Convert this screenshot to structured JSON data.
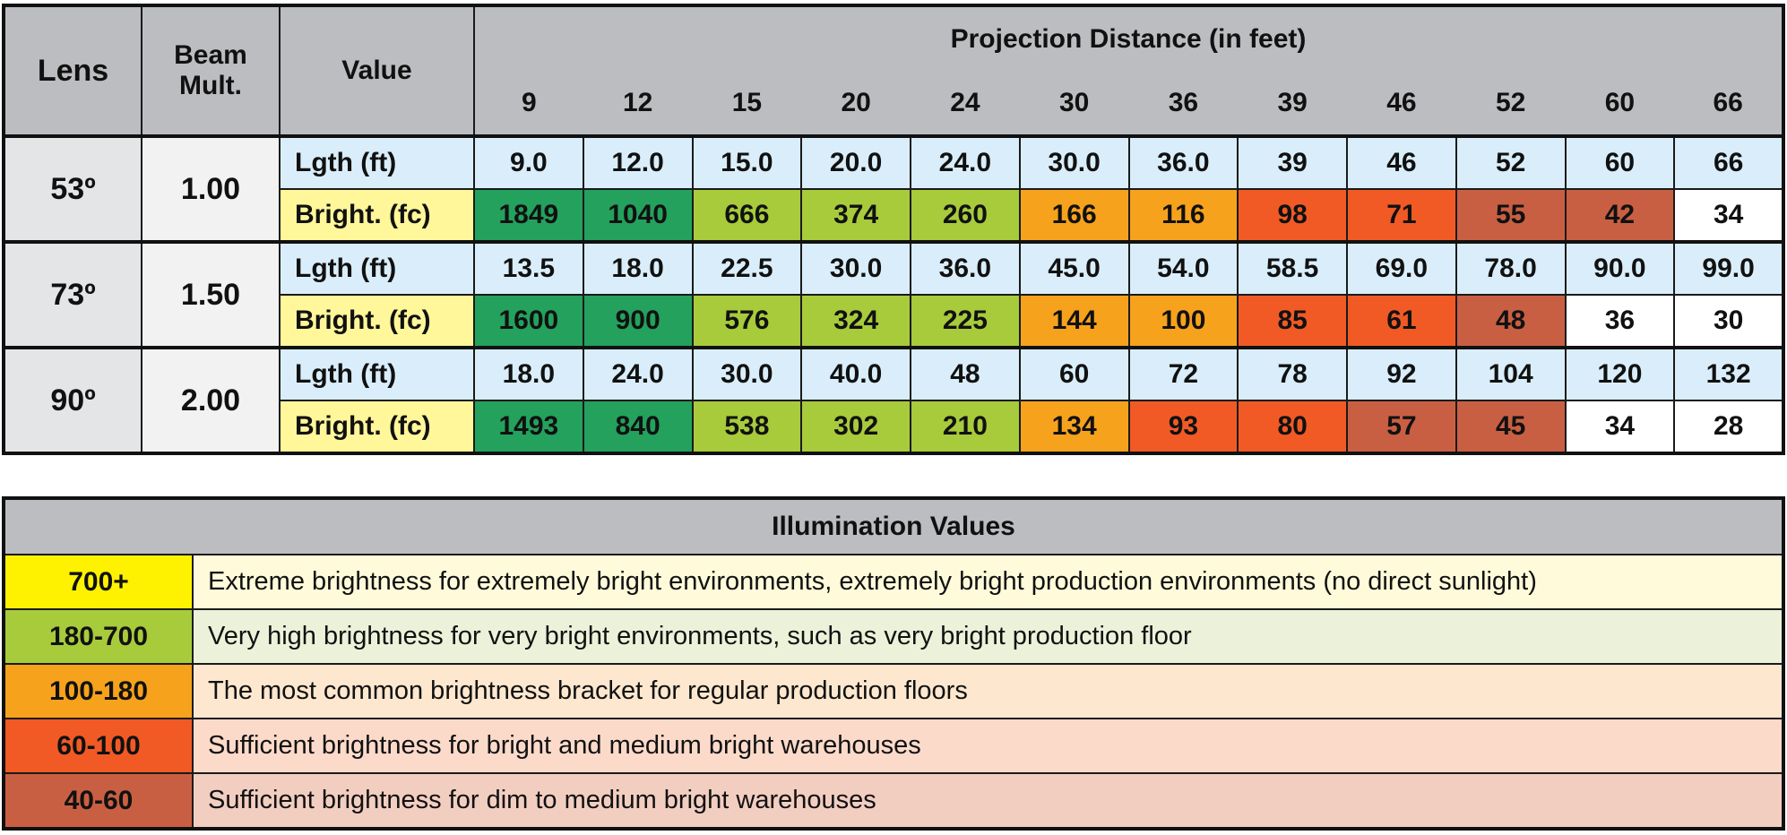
{
  "table": {
    "header": {
      "lens": "Lens",
      "beam": "Beam Mult.",
      "value": "Value",
      "projection": "Projection Distance (in feet)",
      "distances": [
        "9",
        "12",
        "15",
        "20",
        "24",
        "30",
        "36",
        "39",
        "46",
        "52",
        "60",
        "66"
      ]
    },
    "rows": [
      {
        "lens": "53º",
        "beam": "1.00",
        "length_label": "Lgth (ft)",
        "bright_label": "Bright. (fc)",
        "lengths": [
          "9.0",
          "12.0",
          "15.0",
          "20.0",
          "24.0",
          "30.0",
          "36.0",
          "39",
          "46",
          "52",
          "60",
          "66"
        ],
        "brightness": [
          "1849",
          "1040",
          "666",
          "374",
          "260",
          "166",
          "116",
          "98",
          "71",
          "55",
          "42",
          "34"
        ],
        "colors": [
          "#23a15d",
          "#23a15d",
          "#a7cb3b",
          "#a7cb3b",
          "#a7cb3b",
          "#f7a21c",
          "#f7a21c",
          "#f15a25",
          "#f15a25",
          "#c95f42",
          "#c95f42",
          "#ffffff"
        ]
      },
      {
        "lens": "73º",
        "beam": "1.50",
        "length_label": "Lgth (ft)",
        "bright_label": "Bright. (fc)",
        "lengths": [
          "13.5",
          "18.0",
          "22.5",
          "30.0",
          "36.0",
          "45.0",
          "54.0",
          "58.5",
          "69.0",
          "78.0",
          "90.0",
          "99.0"
        ],
        "brightness": [
          "1600",
          "900",
          "576",
          "324",
          "225",
          "144",
          "100",
          "85",
          "61",
          "48",
          "36",
          "30"
        ],
        "colors": [
          "#23a15d",
          "#23a15d",
          "#a7cb3b",
          "#a7cb3b",
          "#a7cb3b",
          "#f7a21c",
          "#f7a21c",
          "#f15a25",
          "#f15a25",
          "#c95f42",
          "#ffffff",
          "#ffffff"
        ]
      },
      {
        "lens": "90º",
        "beam": "2.00",
        "length_label": "Lgth (ft)",
        "bright_label": "Bright. (fc)",
        "lengths": [
          "18.0",
          "24.0",
          "30.0",
          "40.0",
          "48",
          "60",
          "72",
          "78",
          "92",
          "104",
          "120",
          "132"
        ],
        "brightness": [
          "1493",
          "840",
          "538",
          "302",
          "210",
          "134",
          "93",
          "80",
          "57",
          "45",
          "34",
          "28"
        ],
        "colors": [
          "#23a15d",
          "#23a15d",
          "#a7cb3b",
          "#a7cb3b",
          "#a7cb3b",
          "#f7a21c",
          "#f15a25",
          "#f15a25",
          "#c95f42",
          "#c95f42",
          "#ffffff",
          "#ffffff"
        ]
      }
    ]
  },
  "legend": {
    "title": "Illumination Values",
    "rows": [
      {
        "range": "700+",
        "text": "Extreme brightness for extremely bright environments, extremely bright production environments (no direct sunlight)",
        "color": "#fff200",
        "background": "#fffbda"
      },
      {
        "range": "180-700",
        "text": "Very high brightness for very bright environments, such as very bright production floor",
        "color": "#a7cb3b",
        "background": "#ebf2d9"
      },
      {
        "range": "100-180",
        "text": "The most common brightness bracket for regular production floors",
        "color": "#f7a21c",
        "background": "#fde8cf"
      },
      {
        "range": "60-100",
        "text": "Sufficient brightness for bright and medium bright warehouses",
        "color": "#f15a25",
        "background": "#fcdaca"
      },
      {
        "range": "40-60",
        "text": "Sufficient brightness for dim to medium bright warehouses",
        "color": "#c95f42",
        "background": "#f2cec1"
      }
    ]
  }
}
